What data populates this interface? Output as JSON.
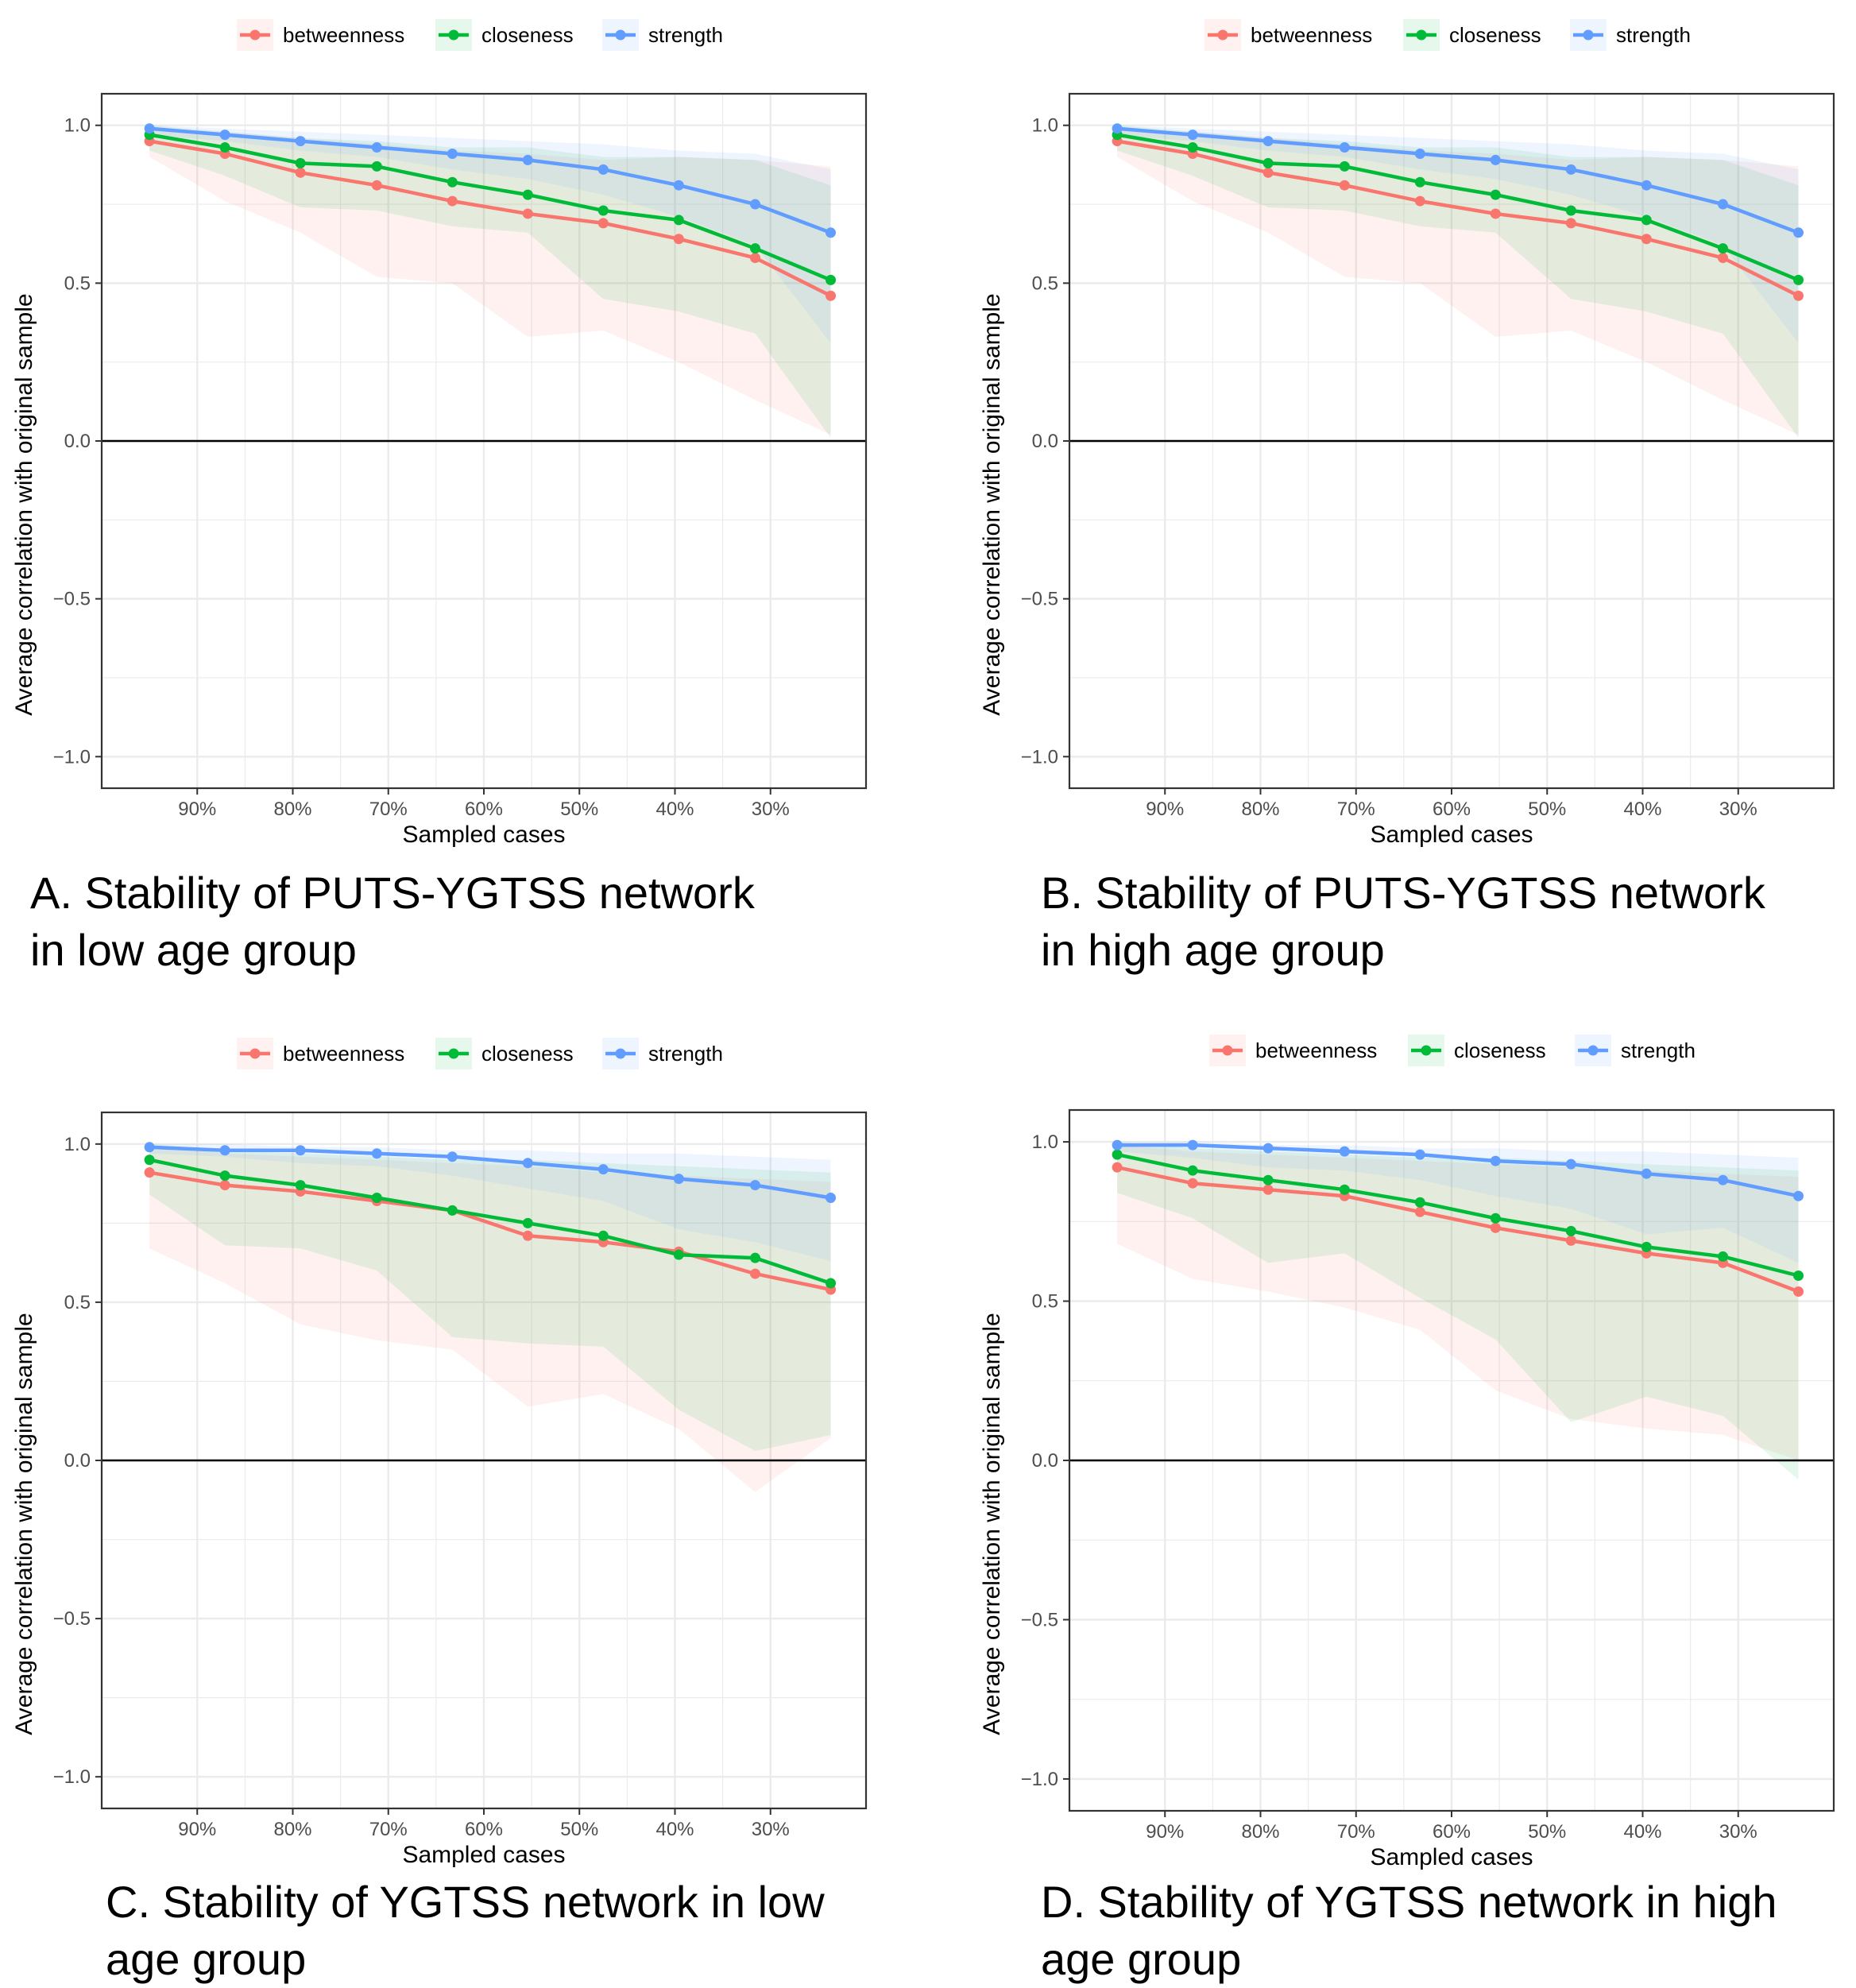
{
  "colors": {
    "betweenness": "#F8766D",
    "closeness": "#00BA38",
    "strength": "#619CFF",
    "grid": "#EBEBEB",
    "panel_border": "#333333",
    "text": "#000000",
    "tick_text": "#4D4D4D"
  },
  "chart_data": [
    {
      "type": "line",
      "id": "A",
      "xlabel": "Sampled cases",
      "ylabel": "Average correlation with original sample",
      "ylim": [
        -1.1,
        1.1
      ],
      "xlim": [
        100,
        20
      ],
      "yticks": [
        -1.0,
        -0.5,
        0.0,
        0.5,
        1.0
      ],
      "ytick_labels": [
        "−1.0",
        "−0.5",
        "0.0",
        "0.5",
        "1.0"
      ],
      "xticks": [
        90,
        80,
        70,
        60,
        50,
        40,
        30
      ],
      "xtick_labels": [
        "90%",
        "80%",
        "70%",
        "60%",
        "50%",
        "40%",
        "30%"
      ],
      "legend": [
        "betweenness",
        "closeness",
        "strength"
      ],
      "x": [
        95,
        87.1,
        79.2,
        71.2,
        63.3,
        55.4,
        47.5,
        39.6,
        31.6,
        23.7
      ],
      "series": [
        {
          "name": "betweenness",
          "values": [
            0.95,
            0.91,
            0.85,
            0.81,
            0.76,
            0.72,
            0.69,
            0.64,
            0.58,
            0.46
          ],
          "lower": [
            0.9,
            0.76,
            0.66,
            0.52,
            0.5,
            0.33,
            0.35,
            0.25,
            0.13,
            0.02
          ],
          "upper": [
            0.99,
            0.98,
            0.96,
            0.94,
            0.92,
            0.91,
            0.89,
            0.9,
            0.89,
            0.87
          ]
        },
        {
          "name": "closeness",
          "values": [
            0.97,
            0.93,
            0.88,
            0.87,
            0.82,
            0.78,
            0.73,
            0.7,
            0.61,
            0.51
          ],
          "lower": [
            0.92,
            0.84,
            0.74,
            0.73,
            0.68,
            0.66,
            0.45,
            0.41,
            0.34,
            0.01
          ],
          "upper": [
            1.0,
            0.98,
            0.96,
            0.95,
            0.93,
            0.93,
            0.9,
            0.9,
            0.89,
            0.81
          ]
        },
        {
          "name": "strength",
          "values": [
            0.99,
            0.97,
            0.95,
            0.93,
            0.91,
            0.89,
            0.86,
            0.81,
            0.75,
            0.66
          ],
          "lower": [
            0.97,
            0.95,
            0.92,
            0.9,
            0.86,
            0.83,
            0.78,
            0.71,
            0.62,
            0.31
          ],
          "upper": [
            1.0,
            0.99,
            0.98,
            0.97,
            0.96,
            0.95,
            0.94,
            0.92,
            0.91,
            0.86
          ]
        }
      ]
    },
    {
      "type": "line",
      "id": "B",
      "xlabel": "Sampled cases",
      "ylabel": "Average correlation with original sample",
      "ylim": [
        -1.1,
        1.1
      ],
      "xlim": [
        100,
        20
      ],
      "yticks": [
        -1.0,
        -0.5,
        0.0,
        0.5,
        1.0
      ],
      "ytick_labels": [
        "−1.0",
        "−0.5",
        "0.0",
        "0.5",
        "1.0"
      ],
      "xticks": [
        90,
        80,
        70,
        60,
        50,
        40,
        30
      ],
      "xtick_labels": [
        "90%",
        "80%",
        "70%",
        "60%",
        "50%",
        "40%",
        "30%"
      ],
      "legend": [
        "betweenness",
        "closeness",
        "strength"
      ],
      "x": [
        95,
        87.1,
        79.2,
        71.2,
        63.3,
        55.4,
        47.5,
        39.6,
        31.6,
        23.7
      ],
      "series": [
        {
          "name": "betweenness",
          "values": [
            0.95,
            0.91,
            0.85,
            0.81,
            0.76,
            0.72,
            0.69,
            0.64,
            0.58,
            0.46
          ],
          "lower": [
            0.9,
            0.76,
            0.66,
            0.52,
            0.5,
            0.33,
            0.35,
            0.25,
            0.13,
            0.02
          ],
          "upper": [
            0.99,
            0.98,
            0.96,
            0.94,
            0.92,
            0.91,
            0.89,
            0.9,
            0.89,
            0.87
          ]
        },
        {
          "name": "closeness",
          "values": [
            0.97,
            0.93,
            0.88,
            0.87,
            0.82,
            0.78,
            0.73,
            0.7,
            0.61,
            0.51
          ],
          "lower": [
            0.92,
            0.84,
            0.74,
            0.73,
            0.68,
            0.66,
            0.45,
            0.41,
            0.34,
            0.01
          ],
          "upper": [
            1.0,
            0.98,
            0.96,
            0.95,
            0.93,
            0.93,
            0.9,
            0.9,
            0.89,
            0.81
          ]
        },
        {
          "name": "strength",
          "values": [
            0.99,
            0.97,
            0.95,
            0.93,
            0.91,
            0.89,
            0.86,
            0.81,
            0.75,
            0.66
          ],
          "lower": [
            0.97,
            0.95,
            0.92,
            0.9,
            0.86,
            0.83,
            0.78,
            0.71,
            0.62,
            0.31
          ],
          "upper": [
            1.0,
            0.99,
            0.98,
            0.97,
            0.96,
            0.95,
            0.94,
            0.92,
            0.91,
            0.86
          ]
        }
      ]
    },
    {
      "type": "line",
      "id": "C",
      "xlabel": "Sampled cases",
      "ylabel": "Average correlation with original sample",
      "ylim": [
        -1.1,
        1.1
      ],
      "xlim": [
        100,
        20
      ],
      "yticks": [
        -1.0,
        -0.5,
        0.0,
        0.5,
        1.0
      ],
      "ytick_labels": [
        "−1.0",
        "−0.5",
        "0.0",
        "0.5",
        "1.0"
      ],
      "xticks": [
        90,
        80,
        70,
        60,
        50,
        40,
        30
      ],
      "xtick_labels": [
        "90%",
        "80%",
        "70%",
        "60%",
        "50%",
        "40%",
        "30%"
      ],
      "legend": [
        "betweenness",
        "closeness",
        "strength"
      ],
      "x": [
        95,
        87.1,
        79.2,
        71.2,
        63.3,
        55.4,
        47.5,
        39.6,
        31.6,
        23.7
      ],
      "series": [
        {
          "name": "betweenness",
          "values": [
            0.91,
            0.87,
            0.85,
            0.82,
            0.79,
            0.71,
            0.69,
            0.66,
            0.59,
            0.54
          ],
          "lower": [
            0.67,
            0.56,
            0.43,
            0.38,
            0.35,
            0.17,
            0.21,
            0.1,
            -0.1,
            0.07
          ],
          "upper": [
            0.99,
            0.97,
            0.96,
            0.95,
            0.94,
            0.93,
            0.91,
            0.9,
            0.89,
            0.88
          ]
        },
        {
          "name": "closeness",
          "values": [
            0.95,
            0.9,
            0.87,
            0.83,
            0.79,
            0.75,
            0.71,
            0.65,
            0.64,
            0.56
          ],
          "lower": [
            0.84,
            0.68,
            0.67,
            0.6,
            0.39,
            0.37,
            0.36,
            0.16,
            0.03,
            0.08
          ],
          "upper": [
            1.0,
            0.98,
            0.97,
            0.96,
            0.95,
            0.95,
            0.94,
            0.93,
            0.92,
            0.91
          ]
        },
        {
          "name": "strength",
          "values": [
            0.99,
            0.98,
            0.98,
            0.97,
            0.96,
            0.94,
            0.92,
            0.89,
            0.87,
            0.83
          ],
          "lower": [
            0.97,
            0.96,
            0.94,
            0.93,
            0.9,
            0.86,
            0.82,
            0.73,
            0.69,
            0.63
          ],
          "upper": [
            1.0,
            1.0,
            0.99,
            0.99,
            0.98,
            0.98,
            0.97,
            0.97,
            0.96,
            0.95
          ]
        }
      ]
    },
    {
      "type": "line",
      "id": "D",
      "xlabel": "Sampled cases",
      "ylabel": "Average correlation with original sample",
      "ylim": [
        -1.1,
        1.1
      ],
      "xlim": [
        100,
        20
      ],
      "yticks": [
        -1.0,
        -0.5,
        0.0,
        0.5,
        1.0
      ],
      "ytick_labels": [
        "−1.0",
        "−0.5",
        "0.0",
        "0.5",
        "1.0"
      ],
      "xticks": [
        90,
        80,
        70,
        60,
        50,
        40,
        30
      ],
      "xtick_labels": [
        "90%",
        "80%",
        "70%",
        "60%",
        "50%",
        "40%",
        "30%"
      ],
      "legend": [
        "betweenness",
        "closeness",
        "strength"
      ],
      "x": [
        95,
        87.1,
        79.2,
        71.2,
        63.3,
        55.4,
        47.5,
        39.6,
        31.6,
        23.7
      ],
      "series": [
        {
          "name": "betweenness",
          "values": [
            0.92,
            0.87,
            0.85,
            0.83,
            0.78,
            0.73,
            0.69,
            0.65,
            0.62,
            0.53
          ],
          "lower": [
            0.68,
            0.57,
            0.53,
            0.48,
            0.41,
            0.22,
            0.13,
            0.1,
            0.08,
            0.0
          ],
          "upper": [
            0.99,
            0.97,
            0.96,
            0.95,
            0.94,
            0.93,
            0.92,
            0.91,
            0.9,
            0.89
          ]
        },
        {
          "name": "closeness",
          "values": [
            0.96,
            0.91,
            0.88,
            0.85,
            0.81,
            0.76,
            0.72,
            0.67,
            0.64,
            0.58
          ],
          "lower": [
            0.84,
            0.76,
            0.62,
            0.65,
            0.51,
            0.38,
            0.12,
            0.2,
            0.14,
            -0.06
          ],
          "upper": [
            1.0,
            0.98,
            0.97,
            0.96,
            0.95,
            0.95,
            0.94,
            0.93,
            0.92,
            0.91
          ]
        },
        {
          "name": "strength",
          "values": [
            0.99,
            0.99,
            0.98,
            0.97,
            0.96,
            0.94,
            0.93,
            0.9,
            0.88,
            0.83
          ],
          "lower": [
            0.97,
            0.95,
            0.92,
            0.91,
            0.88,
            0.83,
            0.79,
            0.71,
            0.73,
            0.62
          ],
          "upper": [
            1.0,
            1.0,
            0.99,
            0.99,
            0.98,
            0.98,
            0.97,
            0.97,
            0.96,
            0.95
          ]
        }
      ]
    }
  ],
  "captions": {
    "A_line1": "A. Stability of PUTS-YGTSS network",
    "A_line2": "in low age group",
    "B_line1": "B. Stability of PUTS-YGTSS network",
    "B_line2": "in high age group",
    "C_line1": "C. Stability of YGTSS network in low",
    "C_line2": "age group",
    "D_line1": "D. Stability of YGTSS network in high",
    "D_line2": "age group"
  }
}
